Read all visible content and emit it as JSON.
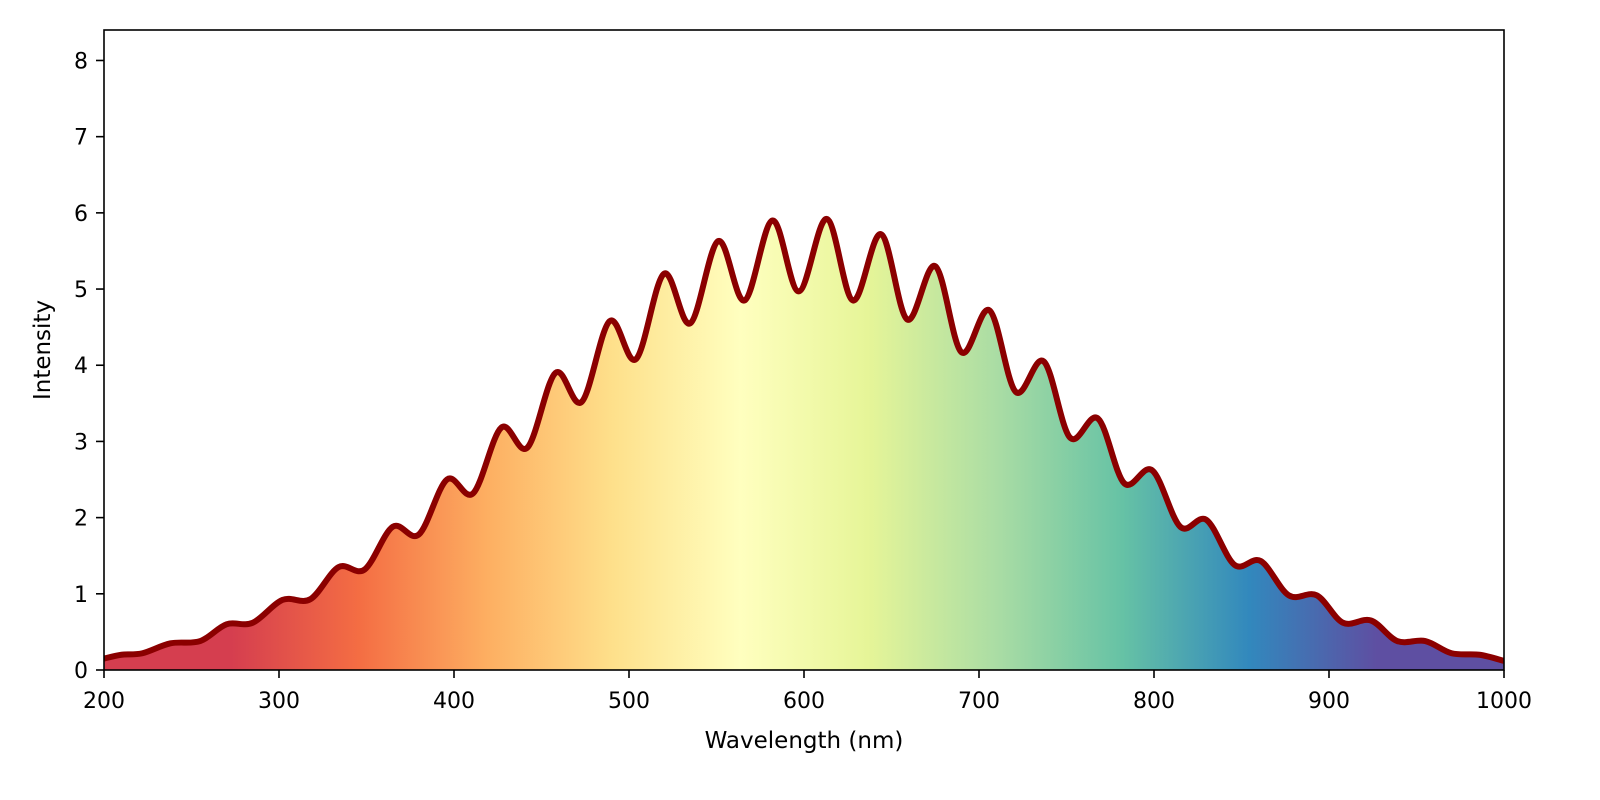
{
  "chart_data": {
    "type": "area",
    "title": "",
    "xlabel": "Wavelength (nm)",
    "ylabel": "Intensity",
    "xlim": [
      200,
      1000
    ],
    "ylim": [
      0,
      8.4
    ],
    "xticks": [
      200,
      300,
      400,
      500,
      600,
      700,
      800,
      900,
      1000
    ],
    "yticks": [
      0,
      1,
      2,
      3,
      4,
      5,
      6,
      7,
      8
    ],
    "grid": false,
    "line_color": "#8b0000",
    "fill_gradient": [
      "#d53e4f",
      "#d53e4f",
      "#f46d43",
      "#fdae61",
      "#fee08b",
      "#ffffbf",
      "#e6f598",
      "#abdda4",
      "#66c2a5",
      "#3288bd",
      "#5e4fa2",
      "#5e4fa2"
    ],
    "series": [
      {
        "x": [
          200,
          210,
          222,
          238,
          255,
          270,
          285,
          302,
          318,
          334,
          349,
          365,
          380,
          396,
          411,
          427,
          442,
          458,
          473,
          489,
          504,
          520,
          535,
          551,
          566,
          582,
          597,
          613,
          628,
          644,
          659,
          675,
          690,
          706,
          721,
          737,
          752,
          768,
          783,
          799,
          815,
          830,
          846,
          861,
          877,
          893,
          908,
          924,
          939,
          955,
          970,
          986,
          1000
        ],
        "values": [
          0.15,
          0.2,
          0.22,
          0.35,
          0.38,
          0.6,
          0.62,
          0.92,
          0.93,
          1.35,
          1.32,
          1.88,
          1.78,
          2.5,
          2.32,
          3.18,
          2.92,
          3.9,
          3.52,
          4.58,
          4.08,
          5.2,
          4.55,
          5.63,
          4.85,
          5.9,
          4.97,
          5.92,
          4.85,
          5.72,
          4.6,
          5.3,
          4.17,
          4.72,
          3.65,
          4.05,
          3.05,
          3.3,
          2.45,
          2.62,
          1.88,
          1.97,
          1.38,
          1.43,
          0.98,
          0.98,
          0.62,
          0.65,
          0.38,
          0.38,
          0.22,
          0.2,
          0.12
        ]
      }
    ]
  }
}
